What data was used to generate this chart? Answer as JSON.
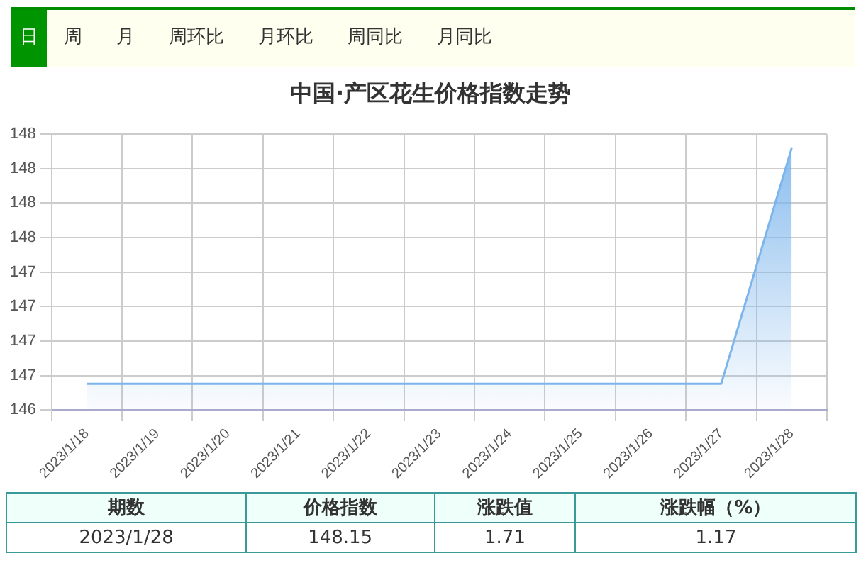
{
  "chart_data": {
    "type": "area",
    "title": "中国·产区花生价格指数走势",
    "categories": [
      "2023/1/18",
      "2023/1/19",
      "2023/1/20",
      "2023/1/21",
      "2023/1/22",
      "2023/1/23",
      "2023/1/24",
      "2023/1/25",
      "2023/1/26",
      "2023/1/27",
      "2023/1/28"
    ],
    "series": [
      {
        "color": "#7cb5ec",
        "values": [
          146.44,
          146.44,
          146.44,
          146.44,
          146.44,
          146.44,
          146.44,
          146.44,
          146.44,
          146.44,
          148.15
        ]
      }
    ],
    "ylim": [
      146.25,
      148.25
    ],
    "yticks": [
      {
        "value": 146.25,
        "label": "146"
      },
      {
        "value": 146.5,
        "label": "147"
      },
      {
        "value": 146.75,
        "label": "147"
      },
      {
        "value": 147,
        "label": "147"
      },
      {
        "value": 147.25,
        "label": "147"
      },
      {
        "value": 147.5,
        "label": "148"
      },
      {
        "value": 147.75,
        "label": "148"
      },
      {
        "value": 148,
        "label": "148"
      },
      {
        "value": 148.25,
        "label": "148"
      }
    ],
    "grid": true,
    "legend": false,
    "marker": "none",
    "annotations": [
      "日",
      "周",
      "月",
      "周环比",
      "月环比",
      "周同比",
      "月同比",
      "期数",
      "价格指数",
      "涨跌值",
      "涨跌幅（%）",
      "2023/1/28",
      "148.15",
      "1.71",
      "1.17"
    ]
  }
}
